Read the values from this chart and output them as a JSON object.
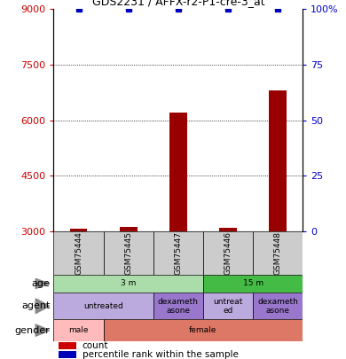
{
  "title": "GDS2231 / AFFX-r2-P1-cre-3_at",
  "samples": [
    "GSM75444",
    "GSM75445",
    "GSM75447",
    "GSM75446",
    "GSM75448"
  ],
  "counts": [
    3080,
    3120,
    6200,
    3100,
    6800
  ],
  "percentile_ranks": [
    100,
    100,
    100,
    100,
    100
  ],
  "ylim_left": [
    3000,
    9000
  ],
  "ylim_right": [
    0,
    100
  ],
  "yticks_left": [
    3000,
    4500,
    6000,
    7500,
    9000
  ],
  "yticks_right": [
    0,
    25,
    50,
    75,
    100
  ],
  "left_tick_color": "#cc0000",
  "right_tick_color": "#0000cc",
  "bar_color": "#990000",
  "percentile_color": "#0000bb",
  "age_groups": [
    {
      "label": "3 m",
      "start": 0,
      "end": 2,
      "color": "#aaddaa"
    },
    {
      "label": "15 m",
      "start": 3,
      "end": 4,
      "color": "#44bb44"
    }
  ],
  "agent_groups": [
    {
      "label": "untreated",
      "start": 0,
      "end": 1,
      "color": "#bbaadd"
    },
    {
      "label": "dexameth\nasone",
      "start": 2,
      "end": 2,
      "color": "#9977cc"
    },
    {
      "label": "untreat\ned",
      "start": 3,
      "end": 3,
      "color": "#bbaadd"
    },
    {
      "label": "dexameth\nasone",
      "start": 4,
      "end": 4,
      "color": "#9977cc"
    }
  ],
  "gender_groups": [
    {
      "label": "male",
      "start": 0,
      "end": 0,
      "color": "#ffbbbb"
    },
    {
      "label": "female",
      "start": 1,
      "end": 4,
      "color": "#dd7766"
    }
  ],
  "sample_box_color": "#cccccc",
  "legend_count_color": "#cc0000",
  "legend_pct_color": "#0000bb"
}
